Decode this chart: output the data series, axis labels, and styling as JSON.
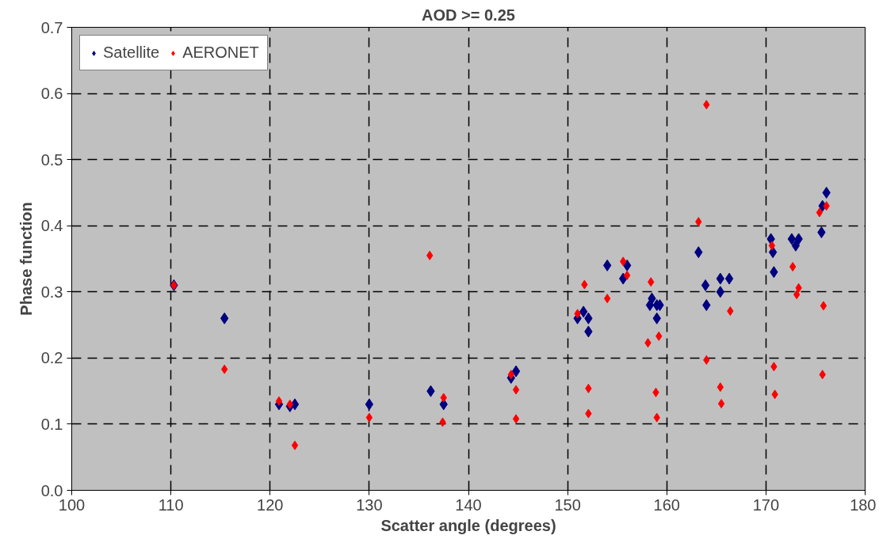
{
  "chart_data": {
    "type": "scatter",
    "title": "AOD >= 0.25",
    "xlabel": "Scatter angle (degrees)",
    "ylabel": "Phase function",
    "xlim": [
      100,
      180
    ],
    "xticks": [
      100,
      110,
      120,
      130,
      140,
      150,
      160,
      170,
      180
    ],
    "ylim": [
      0,
      0.7
    ],
    "yticks": [
      {
        "value": 0,
        "label": "0.0"
      },
      0.1,
      0.2,
      0.3,
      0.4,
      0.5,
      0.6,
      0.7
    ],
    "grid": true,
    "legend": "top left",
    "marker": "diamond",
    "series": [
      {
        "name": "Satellite",
        "color": "#000080",
        "x": [
          110.3,
          115.4,
          120.9,
          122,
          122.5,
          130,
          136.2,
          137.5,
          144.3,
          144.8,
          151,
          151.6,
          152.1,
          152.1,
          154,
          155.6,
          156,
          158.3,
          158.5,
          159,
          159,
          159.3,
          163.2,
          163.9,
          164,
          165.4,
          165.4,
          166.3,
          170.5,
          170.7,
          170.8,
          172.6,
          173,
          173.3,
          175.6,
          175.7,
          176.1
        ],
        "values": [
          0.31,
          0.26,
          0.13,
          0.127,
          0.13,
          0.13,
          0.15,
          0.13,
          0.17,
          0.18,
          0.26,
          0.27,
          0.26,
          0.24,
          0.34,
          0.32,
          0.34,
          0.28,
          0.29,
          0.28,
          0.26,
          0.28,
          0.36,
          0.31,
          0.28,
          0.32,
          0.3,
          0.32,
          0.38,
          0.36,
          0.33,
          0.38,
          0.37,
          0.38,
          0.39,
          0.43,
          0.45
        ]
      },
      {
        "name": "AERONET",
        "color": "#ff0000",
        "x": [
          110.3,
          115.4,
          120.9,
          122,
          122.5,
          130,
          136.1,
          137.5,
          137.4,
          144.3,
          144.8,
          144.8,
          151,
          151.7,
          152.1,
          152.1,
          154,
          155.6,
          156,
          158.1,
          158.4,
          158.9,
          159,
          159.2,
          163.2,
          164,
          164,
          165.4,
          165.5,
          166.4,
          170.6,
          170.8,
          170.9,
          172.7,
          173.1,
          173.3,
          175.4,
          175.8,
          175.7,
          176.1
        ],
        "values": [
          0.31,
          0.183,
          0.135,
          0.13,
          0.068,
          0.11,
          0.355,
          0.14,
          0.103,
          0.175,
          0.152,
          0.108,
          0.267,
          0.311,
          0.154,
          0.116,
          0.29,
          0.346,
          0.325,
          0.223,
          0.315,
          0.148,
          0.11,
          0.233,
          0.406,
          0.583,
          0.197,
          0.156,
          0.131,
          0.271,
          0.37,
          0.187,
          0.145,
          0.338,
          0.296,
          0.306,
          0.42,
          0.279,
          0.175,
          0.43
        ]
      }
    ]
  }
}
